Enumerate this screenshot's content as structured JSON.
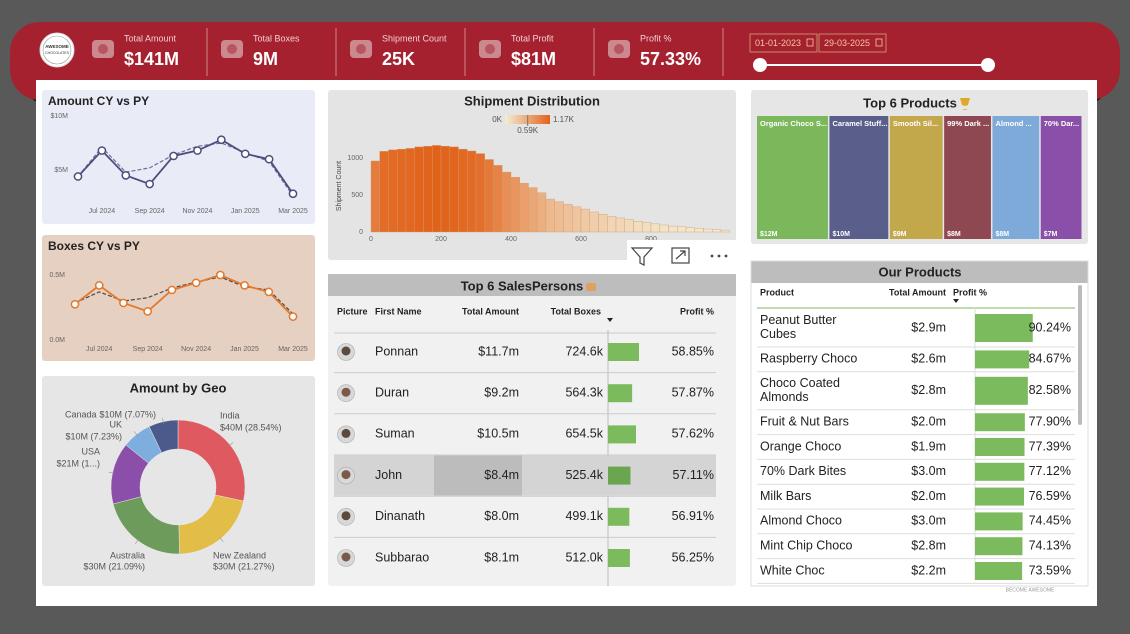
{
  "header": {
    "logo": [
      "AWESOME",
      "CHOCOLATES"
    ],
    "kpis": [
      {
        "label": "Total Amount",
        "value": "$141M"
      },
      {
        "label": "Total Boxes",
        "value": "9M"
      },
      {
        "label": "Shipment Count",
        "value": "25K"
      },
      {
        "label": "Total Profit",
        "value": "$81M"
      },
      {
        "label": "Profit %",
        "value": "57.33%"
      }
    ],
    "date_from": "01-01-2023",
    "date_to": "29-03-2025"
  },
  "chart_data": [
    {
      "type": "line",
      "title": "Amount CY vs PY",
      "background": "#e9ebf7",
      "categories": [
        null,
        "Jul 2024",
        null,
        "Sep 2024",
        null,
        "Nov 2024",
        null,
        "Jan 2025",
        null,
        "Mar 2025"
      ],
      "ylim": [
        0,
        10
      ],
      "yticks": [
        {
          "value": 5,
          "label": "$5M"
        },
        {
          "value": 10,
          "label": "$10M"
        }
      ],
      "series": [
        {
          "color": "#4b4f7c",
          "values": [
            4.4,
            6.8,
            4.5,
            3.7,
            6.3,
            6.8,
            7.8,
            6.5,
            6.0,
            2.8
          ],
          "markers": true
        },
        {
          "color": "#6c7096",
          "values": [
            4.4,
            7.1,
            4.8,
            5.2,
            6.4,
            7.2,
            7.5,
            6.6,
            5.8,
            2.6
          ],
          "dashed": true
        }
      ]
    },
    {
      "type": "line",
      "title": "Boxes CY vs PY",
      "background": "#e6d0c1",
      "categories": [
        null,
        "Jul 2024",
        null,
        "Sep 2024",
        null,
        "Nov 2024",
        null,
        "Jan 2025",
        null,
        "Mar 2025"
      ],
      "ylim": [
        0,
        600000
      ],
      "yticks": [
        {
          "value": 0,
          "label": "0.0M"
        },
        {
          "value": 500000,
          "label": "0.5M"
        }
      ],
      "series": [
        {
          "color": "#e2792c",
          "values": [
            275000,
            420000,
            285000,
            220000,
            385000,
            440000,
            500000,
            420000,
            370000,
            180000
          ],
          "markers": true
        },
        {
          "color": "#4a4a4a",
          "values": [
            285000,
            370000,
            300000,
            325000,
            400000,
            445000,
            485000,
            410000,
            385000,
            200000
          ],
          "dashed": true
        }
      ]
    },
    {
      "type": "pie",
      "donut": true,
      "title": "Amount by Geo",
      "categories": [
        "India",
        "New Zealand",
        "Australia",
        "USA",
        "UK",
        "Canada"
      ],
      "values": [
        40,
        30,
        30,
        21,
        10,
        10
      ],
      "value_labels": [
        "$40M (28.54%)",
        "$30M (21.27%)",
        "$30M (21.09%)",
        "$21M (1...)",
        "$10M (7.23%)",
        "$10M (7.07%)"
      ],
      "colors": [
        "#df5a60",
        "#e2bd47",
        "#6c9b5b",
        "#8c4fa9",
        "#7eaede",
        "#4b5a8a"
      ]
    },
    {
      "type": "histogram",
      "title": "Shipment Distribution",
      "ylabel": "Shipment Count",
      "bins": [
        0,
        25,
        50,
        75,
        100,
        125,
        150,
        175,
        200,
        225,
        250,
        275,
        300,
        325,
        350,
        375,
        400,
        425,
        450,
        475,
        500,
        525,
        550,
        575,
        600,
        625,
        650,
        675,
        700,
        725,
        750,
        775,
        800,
        825,
        850,
        875,
        900,
        925,
        950,
        975,
        1000,
        1025
      ],
      "values": [
        960,
        1090,
        1110,
        1120,
        1130,
        1150,
        1160,
        1170,
        1160,
        1150,
        1120,
        1095,
        1060,
        980,
        900,
        810,
        740,
        660,
        600,
        530,
        445,
        410,
        375,
        340,
        310,
        270,
        240,
        210,
        190,
        165,
        145,
        125,
        110,
        95,
        80,
        70,
        60,
        50,
        40,
        30,
        25
      ],
      "xlim": [
        0,
        1030
      ],
      "xticks": [
        0,
        200,
        400,
        600,
        800
      ],
      "ylim": [
        0,
        1250
      ],
      "yticks": [
        0,
        500,
        1000
      ],
      "color_range": [
        "#f4eed6",
        "#e2621a"
      ],
      "color_ticks": [
        {
          "value": 0,
          "label": "0K"
        },
        {
          "value": 590,
          "label": "0.59K"
        },
        {
          "value": 1170,
          "label": "1.17K"
        }
      ]
    },
    {
      "type": "treemap",
      "title": "Top 6 Products",
      "categories": [
        "Organic Choco S...",
        "Caramel Stuff...",
        "Smooth Sil...",
        "99% Dark ...",
        "Almond ...",
        "70% Dar..."
      ],
      "values": [
        12,
        10,
        9,
        8,
        8,
        7
      ],
      "value_labels": [
        "$12M",
        "$10M",
        "$9M",
        "$8M",
        "$8M",
        "$7M"
      ],
      "colors": [
        "#7ab85b",
        "#5a5e8b",
        "#c3a74b",
        "#8e4851",
        "#7eaad9",
        "#8a4fa8"
      ]
    }
  ],
  "salespersons": {
    "title": "Top 6 SalesPersons",
    "highlighted_row": 3,
    "columns": [
      "Picture",
      "First Name",
      "Total Amount",
      "Total Boxes",
      "Profit %"
    ],
    "rows": [
      [
        "Ponnan",
        "$11.7m",
        "724.6k",
        "58.85%"
      ],
      [
        "Duran",
        "$9.2m",
        "564.3k",
        "57.87%"
      ],
      [
        "Suman",
        "$10.5m",
        "654.5k",
        "57.62%"
      ],
      [
        "John",
        "$8.4m",
        "525.4k",
        "57.11%"
      ],
      [
        "Dinanath",
        "$8.0m",
        "499.1k",
        "56.91%"
      ],
      [
        "Subbarao",
        "$8.1m",
        "512.0k",
        "56.25%"
      ]
    ]
  },
  "products": {
    "title": "Our Products",
    "columns": [
      "Product",
      "Total Amount",
      "Profit %"
    ],
    "rows": [
      [
        "Peanut Butter Cubes",
        "$2.9m",
        "90.24%"
      ],
      [
        "Raspberry Choco",
        "$2.6m",
        "84.67%"
      ],
      [
        "Choco Coated Almonds",
        "$2.8m",
        "82.58%"
      ],
      [
        "Fruit & Nut Bars",
        "$2.0m",
        "77.90%"
      ],
      [
        "Orange Choco",
        "$1.9m",
        "77.39%"
      ],
      [
        "70% Dark Bites",
        "$3.0m",
        "77.12%"
      ],
      [
        "Milk Bars",
        "$2.0m",
        "76.59%"
      ],
      [
        "Almond Choco",
        "$3.0m",
        "74.45%"
      ],
      [
        "Mint Chip Choco",
        "$2.8m",
        "74.13%"
      ],
      [
        "White Choc",
        "$2.2m",
        "73.59%"
      ]
    ]
  },
  "footer": "BECOME AWESOME"
}
